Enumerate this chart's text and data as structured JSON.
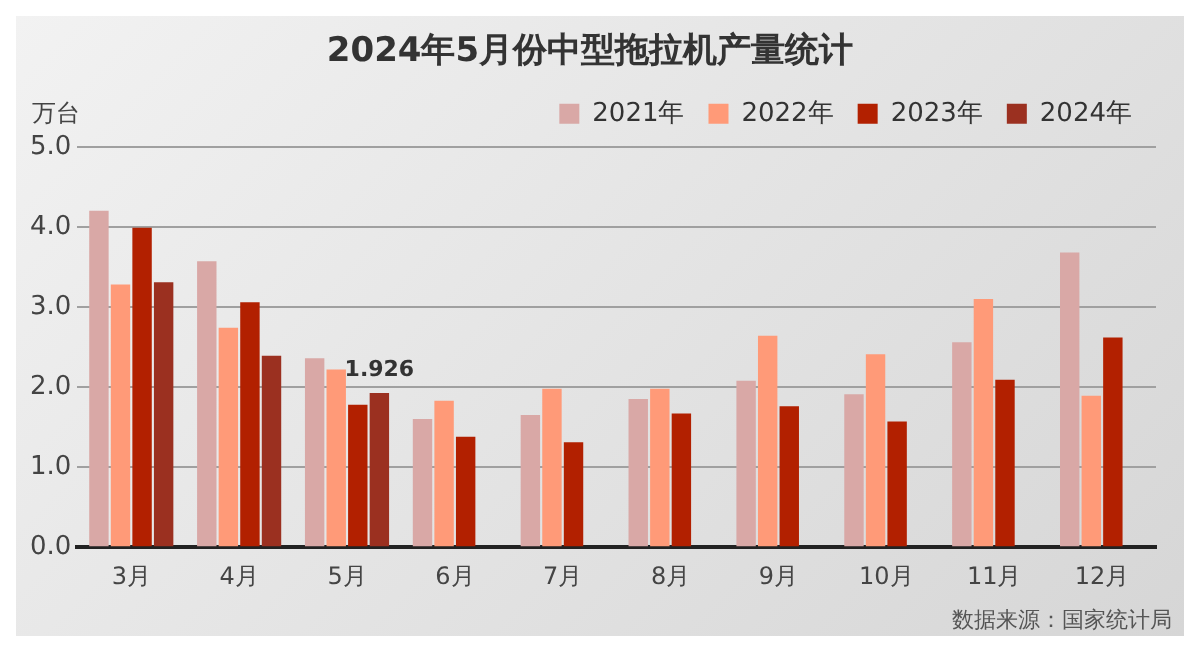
{
  "chart_data": {
    "type": "bar",
    "title": "2024年5月份中型拖拉机产量统计",
    "ylabel": "万台",
    "categories": [
      "3月",
      "4月",
      "5月",
      "6月",
      "7月",
      "8月",
      "9月",
      "10月",
      "11月",
      "12月"
    ],
    "series": [
      {
        "name": "2021年",
        "color": "#d9a8a6",
        "values": [
          4.2,
          3.57,
          2.36,
          1.6,
          1.65,
          1.85,
          2.08,
          1.91,
          2.56,
          3.68
        ]
      },
      {
        "name": "2022年",
        "color": "#ff9a78",
        "values": [
          3.28,
          2.74,
          2.22,
          1.83,
          1.98,
          1.98,
          2.64,
          2.41,
          3.1,
          1.89
        ]
      },
      {
        "name": "2023年",
        "color": "#b22000",
        "values": [
          3.99,
          3.06,
          1.78,
          1.38,
          1.31,
          1.67,
          1.76,
          1.57,
          2.09,
          2.62
        ]
      },
      {
        "name": "2024年",
        "color": "#9b3020",
        "values": [
          3.31,
          2.39,
          1.926,
          null,
          null,
          null,
          null,
          null,
          null,
          null
        ],
        "value_labels": [
          null,
          null,
          "1.926",
          null,
          null,
          null,
          null,
          null,
          null,
          null
        ]
      }
    ],
    "ylim": [
      0,
      5
    ],
    "yticks": [
      {
        "value": 0,
        "label": "0.0"
      },
      {
        "value": 1,
        "label": "1.0"
      },
      {
        "value": 2,
        "label": "2.0"
      },
      {
        "value": 3,
        "label": "3.0"
      },
      {
        "value": 4,
        "label": "4.0"
      },
      {
        "value": 5,
        "label": "5.0"
      }
    ],
    "grid": "y",
    "legend": "top right",
    "annotations": [
      "数据来源：国家统计局"
    ]
  }
}
